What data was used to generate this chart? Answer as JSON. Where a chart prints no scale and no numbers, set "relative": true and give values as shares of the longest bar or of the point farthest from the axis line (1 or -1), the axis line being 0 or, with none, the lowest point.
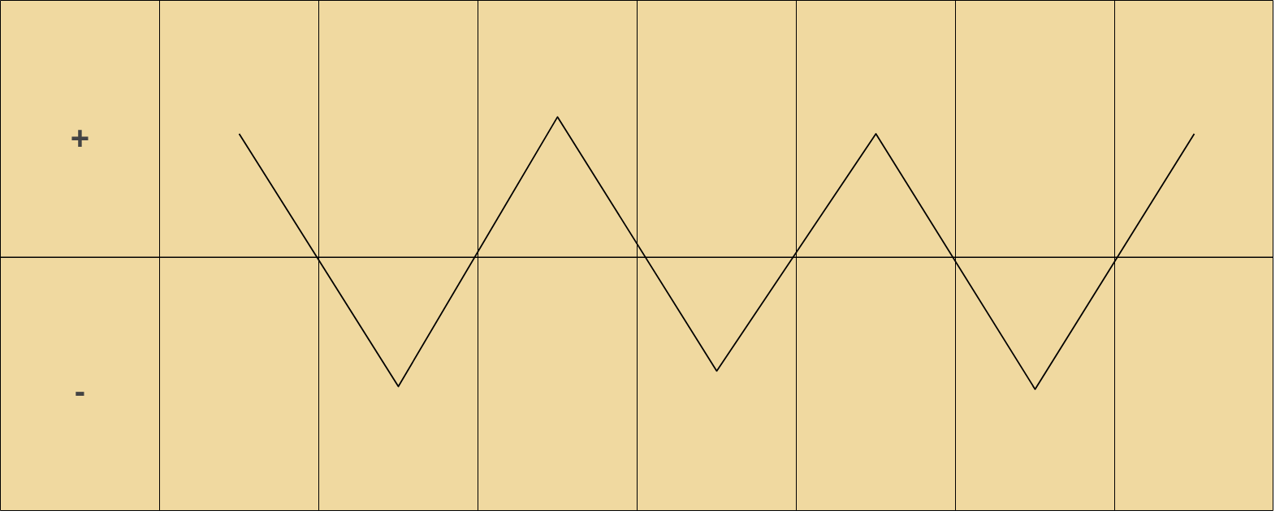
{
  "chart_data": {
    "type": "line",
    "relative": true,
    "categories": [
      null,
      null,
      null,
      null,
      null,
      null,
      null
    ],
    "series": [
      {
        "color": "#000000",
        "values": [
          0.88,
          -0.92,
          1,
          -0.81,
          0.88,
          -0.94,
          0.88
        ]
      }
    ],
    "annotations": [
      "+",
      "-"
    ],
    "grid": "x",
    "marker": "none",
    "line_style": "solid"
  }
}
